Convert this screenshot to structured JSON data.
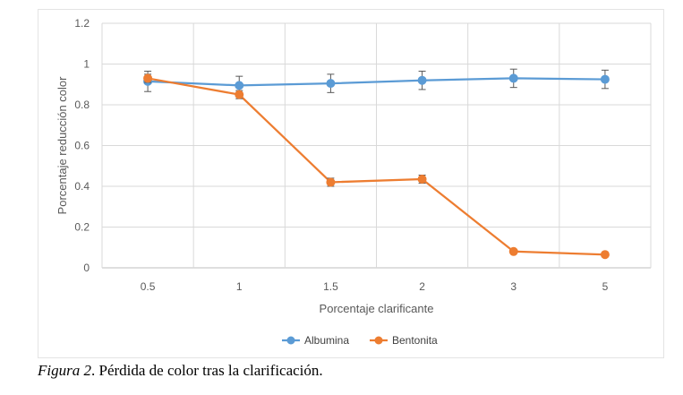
{
  "chart_data": {
    "type": "line",
    "categories": [
      "0.5",
      "1",
      "1.5",
      "2",
      "3",
      "5"
    ],
    "xlabel": "Porcentaje clarificante",
    "ylabel": "Porcentaje reducción color",
    "ylim": [
      0,
      1.2
    ],
    "yticks": [
      "0",
      "0.2",
      "0.4",
      "0.6",
      "0.8",
      "1",
      "1.2"
    ],
    "grid": true,
    "legend_position": "bottom",
    "series": [
      {
        "name": "Albumina",
        "color": "#5b9bd5",
        "values": [
          0.915,
          0.895,
          0.905,
          0.92,
          0.93,
          0.925
        ],
        "errors": [
          0.05,
          0.045,
          0.045,
          0.045,
          0.045,
          0.045
        ]
      },
      {
        "name": "Bentonita",
        "color": "#ed7d31",
        "values": [
          0.93,
          0.85,
          0.42,
          0.435,
          0.08,
          0.065
        ],
        "errors": [
          0.02,
          0.02,
          0.02,
          0.02,
          0.005,
          0.005
        ]
      }
    ]
  },
  "caption": {
    "figure_label": "Figura 2",
    "text": ". Pérdida de color tras la clarificación."
  }
}
